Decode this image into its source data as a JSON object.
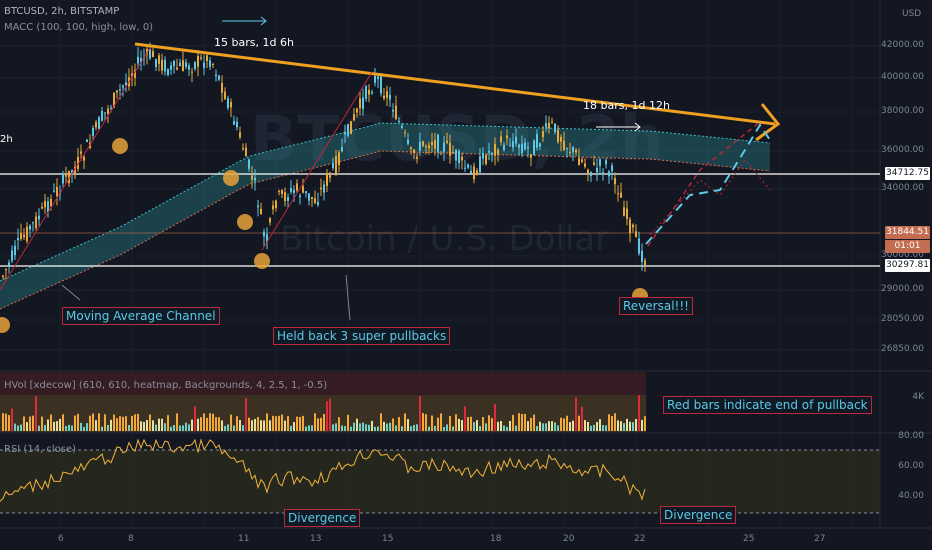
{
  "header": {
    "symbol": "BTCUSD, 2h, BITSTAMP",
    "indicator_macc": "MACC (100, 100, high, low, 0)",
    "watermark_symbol": "BTCUSD, 2h",
    "watermark_name": "Bitcoin / U.S. Dollar",
    "partial_left_label": "2h",
    "currency": "USD"
  },
  "price_scale": {
    "ticks": [
      "42000.00",
      "40000.00",
      "38000.00",
      "36000.00",
      "34000.00",
      "30000.00",
      "29000.00",
      "28050.00",
      "26850.00"
    ],
    "tags": [
      {
        "label": "34712.75",
        "bg": "#ffffff",
        "fg": "#131722"
      },
      {
        "label": "31844.51",
        "bg": "#c46c4f",
        "fg": "#ffffff"
      },
      {
        "label": "01:01",
        "bg": "#c46c4f",
        "fg": "#ffffff"
      },
      {
        "label": "30297.81",
        "bg": "#ffffff",
        "fg": "#131722"
      }
    ]
  },
  "hvol": {
    "legend": "HVol [xdecow] (610, 610, heatmap, Backgrounds, 4, 2.5, 1, -0.5)",
    "scale_tick": "4K"
  },
  "rsi": {
    "legend": "RSI (14, close)",
    "ticks": [
      "80.00",
      "60.00",
      "40.00"
    ]
  },
  "time_axis": {
    "ticks": [
      "6",
      "8",
      "11",
      "13",
      "15",
      "18",
      "20",
      "22",
      "25",
      "27"
    ]
  },
  "annotations": {
    "top_bars": "15 bars, 1d 6h",
    "right_bars": "18 bars, 1d 12h",
    "moving_average_channel": "Moving Average Channel",
    "held_back": "Held back 3 super pullbacks",
    "reversal": "Reversal!!!",
    "red_bars": "Red bars indicate end of pullback",
    "divergence_left": "Divergence",
    "divergence_right": "Divergence"
  },
  "colors": {
    "background": "#131722",
    "bull": "#5ec8e6",
    "bear": "#e8a83a",
    "trendline": "#f0a020",
    "channel": "#2a8f96",
    "rsi_line": "#f2b33a",
    "annotation_border": "#c0263c"
  }
}
